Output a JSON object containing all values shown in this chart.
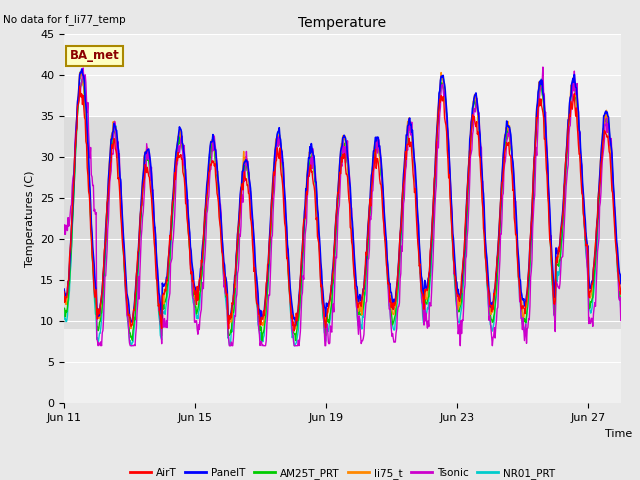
{
  "title": "Temperature",
  "ylabel": "Temperatures (C)",
  "xlabel": "Time",
  "no_data_text": "No data for f_li77_temp",
  "ba_met_label": "BA_met",
  "ylim": [
    0,
    45
  ],
  "yticks": [
    0,
    5,
    10,
    15,
    20,
    25,
    30,
    35,
    40,
    45
  ],
  "xtick_labels": [
    "Jun 11",
    "Jun 15",
    "Jun 19",
    "Jun 23",
    "Jun 27"
  ],
  "xtick_positions": [
    0,
    4,
    8,
    12,
    16
  ],
  "series_colors": {
    "AirT": "#FF0000",
    "PanelT": "#0000FF",
    "AM25T_PRT": "#00CC00",
    "li75_t": "#FF8800",
    "Tsonic": "#CC00CC",
    "NR01_PRT": "#00CCCC"
  },
  "bg_color": "#E8E8E8",
  "plot_bg_light": "#F0F0F0",
  "band_color": "#DCDCDC",
  "band_ymin": 9,
  "band_ymax": 35,
  "lw": 1.0,
  "peak_maxes": [
    40,
    33.5,
    30.5,
    32.5,
    31.5,
    29.5,
    32.5,
    30.5,
    32,
    32,
    34,
    39.5,
    37,
    33.5,
    39,
    39,
    35
  ],
  "peak_mins": [
    11.5,
    9.5,
    8.5,
    12.5,
    12,
    9,
    9,
    8.5,
    10.5,
    11,
    10.5,
    12.5,
    11.5,
    10.5,
    10.5,
    17,
    12.5
  ]
}
